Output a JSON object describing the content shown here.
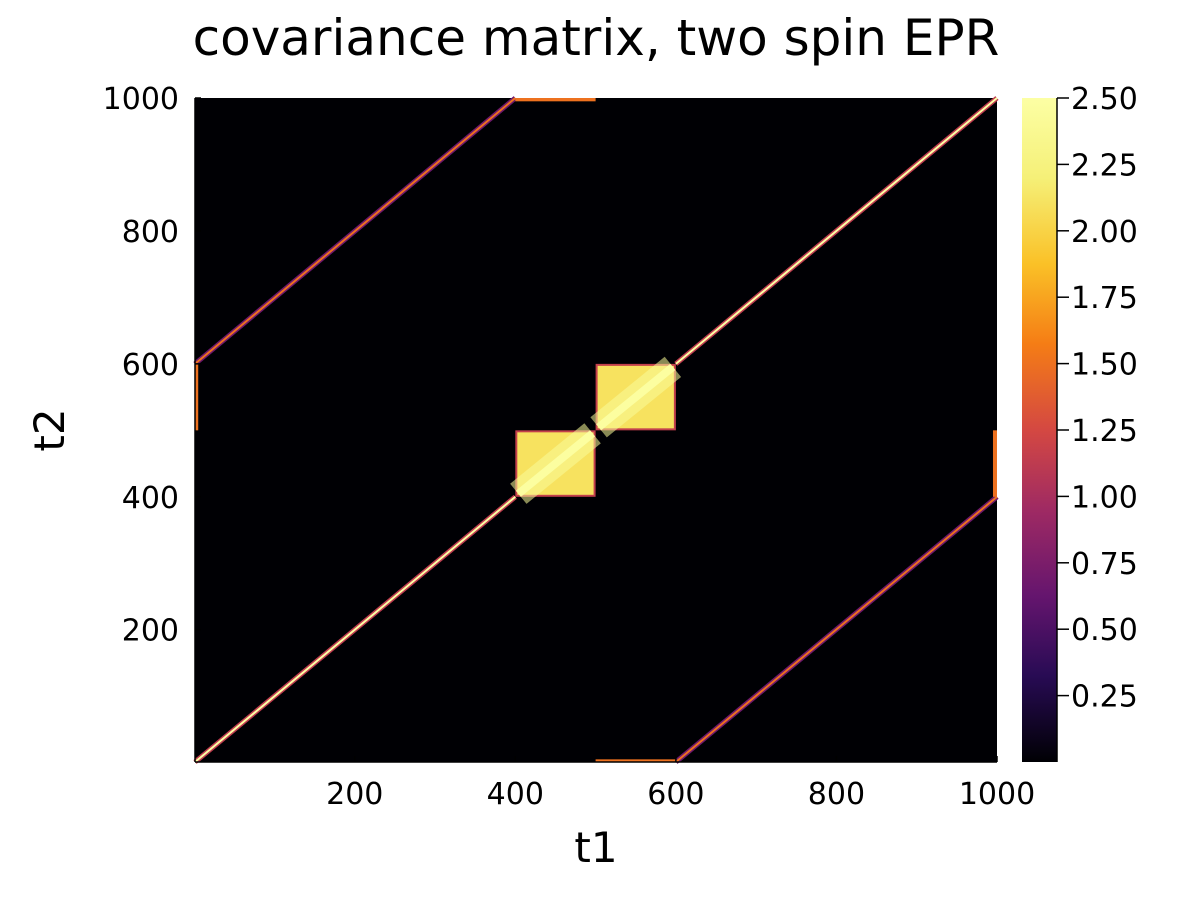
{
  "chart_data": {
    "type": "heatmap",
    "title": "covariance matrix, two spin EPR",
    "xlabel": "t1",
    "ylabel": "t2",
    "xlim": [
      1,
      1000
    ],
    "ylim": [
      1,
      1000
    ],
    "xticks": [
      200,
      400,
      600,
      800,
      1000
    ],
    "yticks": [
      200,
      400,
      600,
      800,
      1000
    ],
    "colorbar": {
      "colormap": "inferno",
      "clim": [
        0,
        2.5
      ],
      "ticks": [
        "0.25",
        "0.50",
        "0.75",
        "1.00",
        "1.25",
        "1.50",
        "1.75",
        "2.00",
        "2.25",
        "2.50"
      ],
      "tick_values": [
        0.25,
        0.5,
        0.75,
        1.0,
        1.25,
        1.5,
        1.75,
        2.0,
        2.25,
        2.5
      ]
    },
    "features": [
      {
        "kind": "diagonal",
        "from": [
          1,
          1
        ],
        "to": [
          400,
          400
        ],
        "value": 2.5
      },
      {
        "kind": "block",
        "t1": [
          400,
          500
        ],
        "t2": [
          400,
          500
        ],
        "value": 2.1,
        "diag_value": 2.5
      },
      {
        "kind": "block",
        "t1": [
          500,
          600
        ],
        "t2": [
          500,
          600
        ],
        "value": 2.1,
        "diag_value": 2.5
      },
      {
        "kind": "diagonal",
        "from": [
          600,
          600
        ],
        "to": [
          1000,
          1000
        ],
        "value": 2.5
      },
      {
        "kind": "diagonal",
        "from": [
          1,
          600
        ],
        "to": [
          400,
          1000
        ],
        "value": 1.5
      },
      {
        "kind": "diagonal",
        "from": [
          600,
          1
        ],
        "to": [
          1000,
          400
        ],
        "value": 1.5
      },
      {
        "kind": "edge",
        "t1": [
          1,
          5
        ],
        "t2": [
          500,
          600
        ],
        "value": 1.5
      },
      {
        "kind": "edge",
        "t1": [
          995,
          1000
        ],
        "t2": [
          400,
          500
        ],
        "value": 1.5
      },
      {
        "kind": "edge",
        "t1": [
          400,
          500
        ],
        "t2": [
          995,
          1000
        ],
        "value": 1.5
      },
      {
        "kind": "edge",
        "t1": [
          500,
          600
        ],
        "t2": [
          1,
          5
        ],
        "value": 1.5
      }
    ]
  }
}
